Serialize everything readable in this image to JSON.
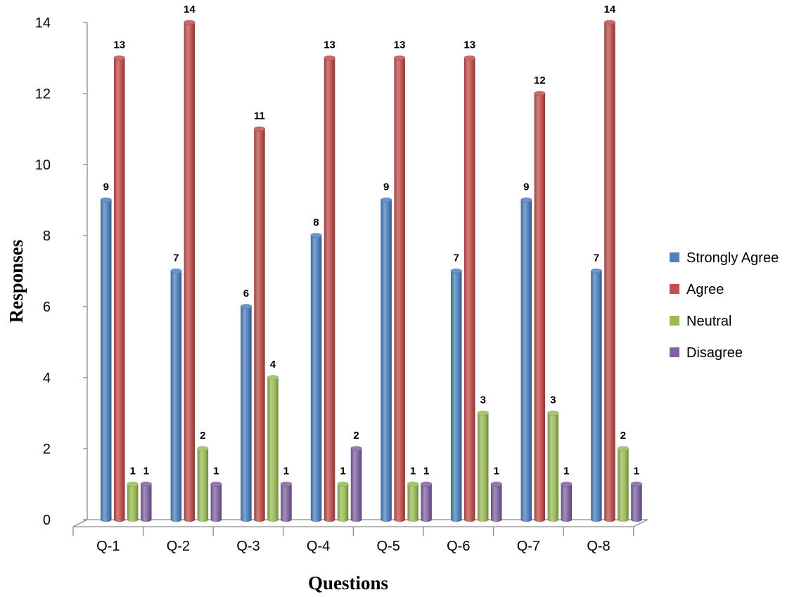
{
  "chart_data": {
    "type": "bar",
    "title": "",
    "xlabel": "Questions",
    "ylabel": "Responses",
    "categories": [
      "Q-1",
      "Q-2",
      "Q-3",
      "Q-4",
      "Q-5",
      "Q-6",
      "Q-7",
      "Q-8"
    ],
    "series": [
      {
        "name": "Strongly Agree",
        "color": "#4F81BD",
        "values": [
          9,
          7,
          6,
          8,
          9,
          7,
          9,
          7
        ]
      },
      {
        "name": "Agree",
        "color": "#C0504D",
        "values": [
          13,
          14,
          11,
          13,
          13,
          13,
          12,
          14
        ]
      },
      {
        "name": "Neutral",
        "color": "#9BBB59",
        "values": [
          1,
          2,
          4,
          1,
          1,
          3,
          3,
          2
        ]
      },
      {
        "name": "Disagree",
        "color": "#8064A2",
        "values": [
          1,
          1,
          1,
          2,
          1,
          1,
          1,
          1
        ]
      }
    ],
    "ylim": [
      0,
      14
    ],
    "yticks": [
      0,
      2,
      4,
      6,
      8,
      10,
      12,
      14
    ],
    "grid": false,
    "legend_position": "right",
    "style": "3d-cylinder"
  }
}
